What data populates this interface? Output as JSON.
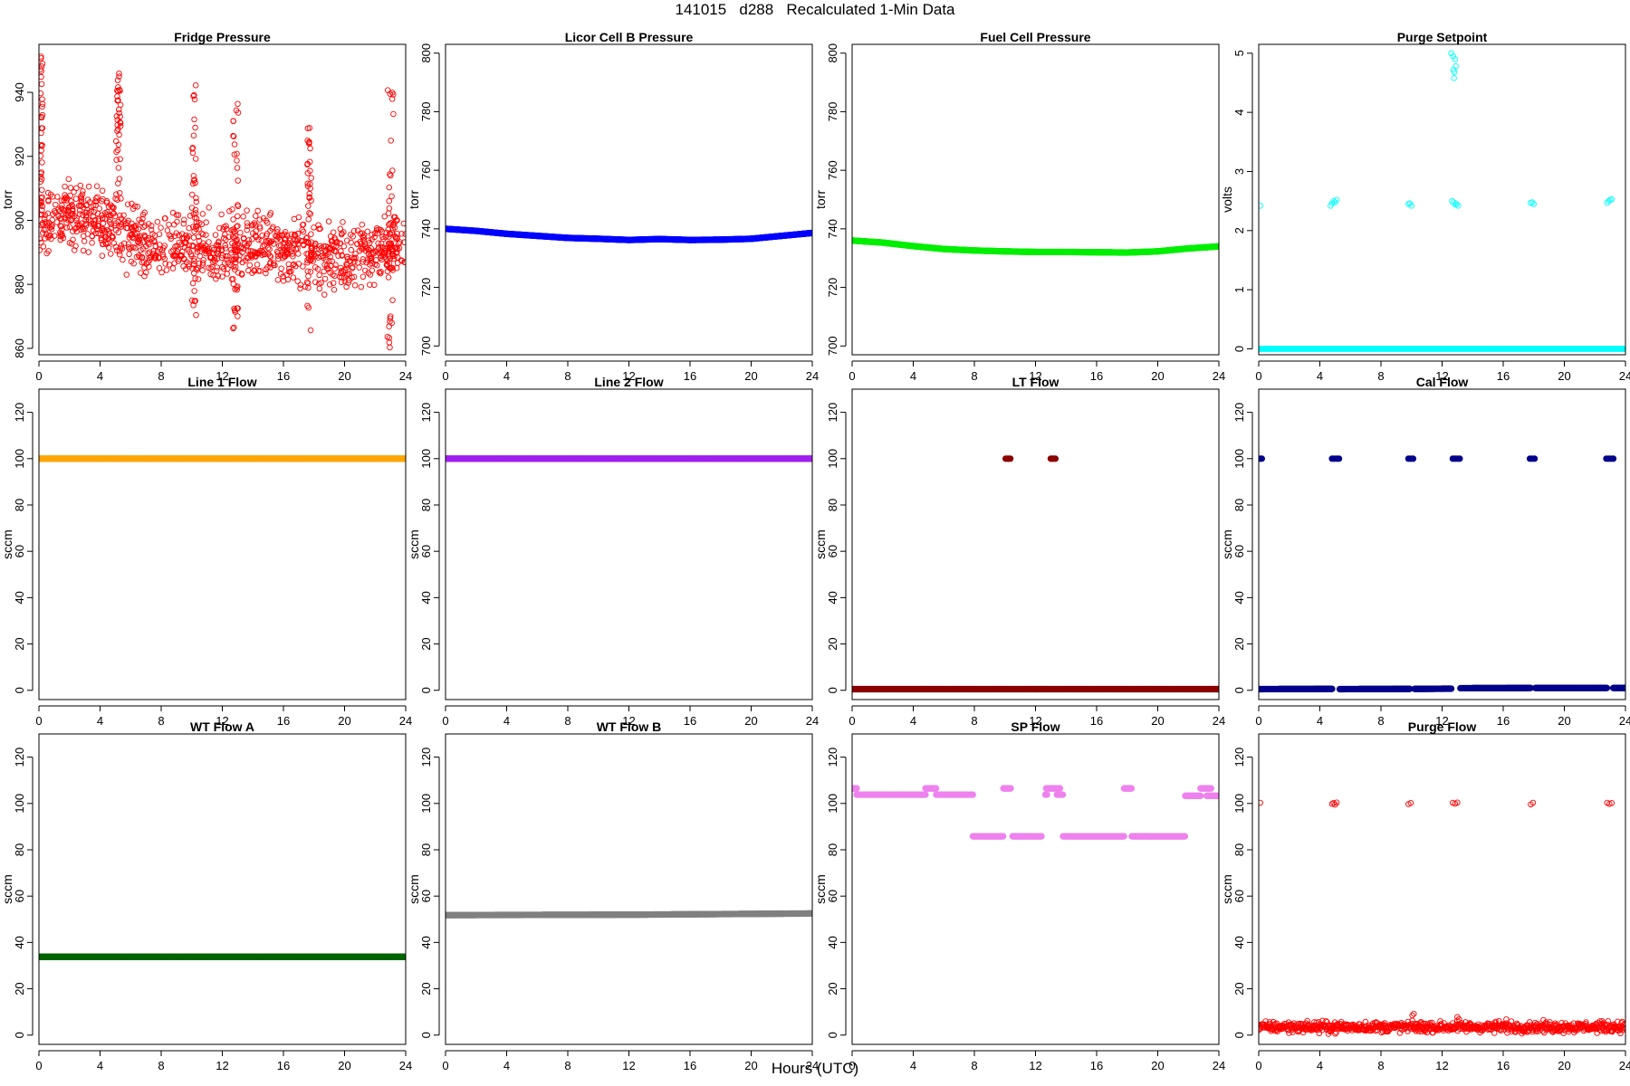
{
  "title": "141015   d288   Recalculated 1-Min Data",
  "xlabel": "Hours (UTC)",
  "chart_data": [
    {
      "type": "scatter",
      "title": "Fridge Pressure",
      "ylabel": "torr",
      "color": "#ff0000",
      "marker": "open-circle",
      "xlim": [
        0,
        24
      ],
      "ylim": [
        858,
        955
      ],
      "xticks": [
        0,
        4,
        8,
        12,
        16,
        20,
        24
      ],
      "yticks": [
        860,
        880,
        900,
        920,
        940
      ],
      "baseline": [
        [
          0,
          899
        ],
        [
          2,
          902
        ],
        [
          4,
          900
        ],
        [
          6,
          894
        ],
        [
          8,
          891
        ],
        [
          10,
          893
        ],
        [
          12,
          890
        ],
        [
          14,
          892
        ],
        [
          16,
          891
        ],
        [
          18,
          889
        ],
        [
          20,
          888
        ],
        [
          22,
          891
        ],
        [
          24,
          892
        ]
      ],
      "spread": 7,
      "bursts": [
        [
          0.1,
          0.25,
          900,
          952
        ],
        [
          5.05,
          5.35,
          905,
          948
        ],
        [
          10.0,
          10.3,
          870,
          943
        ],
        [
          12.7,
          13.05,
          866,
          941
        ],
        [
          17.55,
          17.85,
          864,
          929
        ],
        [
          22.8,
          23.2,
          860,
          943
        ]
      ]
    },
    {
      "type": "scatter",
      "title": "Licor Cell B Pressure",
      "ylabel": "torr",
      "color": "#0000ff",
      "marker": "filled-dense",
      "xlim": [
        0,
        24
      ],
      "ylim": [
        697,
        803
      ],
      "xticks": [
        0,
        4,
        8,
        12,
        16,
        20,
        24
      ],
      "yticks": [
        700,
        720,
        740,
        760,
        780,
        800
      ],
      "segments": [
        {
          "x": [
            0,
            2,
            4,
            6,
            8,
            10,
            12,
            14,
            16,
            18,
            20,
            22,
            24
          ],
          "y": [
            740,
            739.3,
            738.3,
            737.6,
            736.9,
            736.6,
            736.2,
            736.5,
            736.2,
            736.3,
            736.6,
            737.6,
            738.6
          ]
        }
      ]
    },
    {
      "type": "scatter",
      "title": "Fuel Cell Pressure",
      "ylabel": "torr",
      "color": "#00ee00",
      "marker": "filled-dense",
      "xlim": [
        0,
        24
      ],
      "ylim": [
        697,
        803
      ],
      "xticks": [
        0,
        4,
        8,
        12,
        16,
        20,
        24
      ],
      "yticks": [
        700,
        720,
        740,
        760,
        780,
        800
      ],
      "segments": [
        {
          "x": [
            0,
            2,
            4,
            6,
            8,
            10,
            12,
            14,
            16,
            18,
            20,
            22,
            24
          ],
          "y": [
            736,
            735.3,
            734.1,
            733.1,
            732.6,
            732.3,
            732.1,
            732.1,
            732,
            731.9,
            732.3,
            733.3,
            734
          ]
        }
      ]
    },
    {
      "type": "scatter",
      "title": "Purge Setpoint",
      "ylabel": "volts",
      "color": "#00ffff",
      "marker": "open-circle",
      "xlim": [
        0,
        24
      ],
      "ylim": [
        -0.1,
        5.15
      ],
      "xticks": [
        0,
        4,
        8,
        12,
        16,
        20,
        24
      ],
      "yticks": [
        0,
        1,
        2,
        3,
        4,
        5
      ],
      "segments": [
        {
          "x": [
            0,
            24
          ],
          "y": [
            0,
            0
          ]
        }
      ],
      "points": [
        [
          0.1,
          2.42
        ],
        [
          4.7,
          2.42
        ],
        [
          4.8,
          2.46
        ],
        [
          4.9,
          2.5
        ],
        [
          5.0,
          2.48
        ],
        [
          5.1,
          2.52
        ],
        [
          9.8,
          2.45
        ],
        [
          9.9,
          2.46
        ],
        [
          10.0,
          2.42
        ],
        [
          12.65,
          2.5
        ],
        [
          12.75,
          2.48
        ],
        [
          12.85,
          2.44
        ],
        [
          12.95,
          2.45
        ],
        [
          13.05,
          2.42
        ],
        [
          17.8,
          2.47
        ],
        [
          17.9,
          2.48
        ],
        [
          18.0,
          2.45
        ],
        [
          22.8,
          2.47
        ],
        [
          22.9,
          2.5
        ],
        [
          23.0,
          2.52
        ],
        [
          23.1,
          2.53
        ],
        [
          12.6,
          5.0
        ],
        [
          12.72,
          4.95
        ],
        [
          12.85,
          4.9
        ],
        [
          12.75,
          4.72
        ],
        [
          12.9,
          4.78
        ],
        [
          12.8,
          4.68
        ],
        [
          12.78,
          4.58
        ]
      ]
    },
    {
      "type": "scatter",
      "title": "Line 1 Flow",
      "ylabel": "sccm",
      "color": "#ffa500",
      "marker": "filled-dense",
      "xlim": [
        0,
        24
      ],
      "ylim": [
        -4,
        130
      ],
      "xticks": [
        0,
        4,
        8,
        12,
        16,
        20,
        24
      ],
      "yticks": [
        0,
        20,
        40,
        60,
        80,
        100,
        120
      ],
      "segments": [
        {
          "x": [
            0,
            24
          ],
          "y": [
            100,
            100
          ]
        }
      ]
    },
    {
      "type": "scatter",
      "title": "Line 2 Flow",
      "ylabel": "sccm",
      "color": "#a020f0",
      "marker": "filled-dense",
      "xlim": [
        0,
        24
      ],
      "ylim": [
        -4,
        130
      ],
      "xticks": [
        0,
        4,
        8,
        12,
        16,
        20,
        24
      ],
      "yticks": [
        0,
        20,
        40,
        60,
        80,
        100,
        120
      ],
      "segments": [
        {
          "x": [
            0,
            24
          ],
          "y": [
            100,
            100
          ]
        }
      ]
    },
    {
      "type": "scatter",
      "title": "LT Flow",
      "ylabel": "sccm",
      "color": "#8b0000",
      "marker": "filled-dense",
      "xlim": [
        0,
        24
      ],
      "ylim": [
        -4,
        130
      ],
      "xticks": [
        0,
        4,
        8,
        12,
        16,
        20,
        24
      ],
      "yticks": [
        0,
        20,
        40,
        60,
        80,
        100,
        120
      ],
      "segments": [
        {
          "x": [
            0,
            24
          ],
          "y": [
            0.5,
            0.5
          ]
        }
      ],
      "points": [
        [
          10.05,
          100
        ],
        [
          10.15,
          100
        ],
        [
          10.25,
          100
        ],
        [
          10.35,
          100
        ],
        [
          13.0,
          100
        ],
        [
          13.1,
          100
        ],
        [
          13.2,
          100
        ],
        [
          13.3,
          100
        ]
      ]
    },
    {
      "type": "scatter",
      "title": "Cal Flow",
      "ylabel": "sccm",
      "color": "#00008b",
      "marker": "filled-dense",
      "xlim": [
        0,
        24
      ],
      "ylim": [
        -4,
        130
      ],
      "xticks": [
        0,
        4,
        8,
        12,
        16,
        20,
        24
      ],
      "yticks": [
        0,
        20,
        40,
        60,
        80,
        100,
        120
      ],
      "segments": [
        {
          "x": [
            0,
            4.8
          ],
          "y": [
            0.5,
            0.6
          ]
        },
        {
          "x": [
            5.3,
            9.9
          ],
          "y": [
            0.5,
            0.6
          ]
        },
        {
          "x": [
            10.2,
            12.6
          ],
          "y": [
            0.6,
            0.7
          ]
        },
        {
          "x": [
            13.2,
            17.8
          ],
          "y": [
            0.9,
            1.0
          ]
        },
        {
          "x": [
            18.1,
            22.8
          ],
          "y": [
            1.0,
            1.0
          ]
        },
        {
          "x": [
            23.2,
            24
          ],
          "y": [
            1.0,
            1.0
          ]
        }
      ],
      "points": [
        [
          0.1,
          100
        ],
        [
          0.2,
          100
        ],
        [
          4.8,
          100
        ],
        [
          4.95,
          100
        ],
        [
          5.1,
          100
        ],
        [
          5.25,
          100
        ],
        [
          9.8,
          100
        ],
        [
          9.95,
          100
        ],
        [
          10.1,
          100
        ],
        [
          12.7,
          100
        ],
        [
          12.85,
          100
        ],
        [
          13.0,
          100
        ],
        [
          13.15,
          100
        ],
        [
          17.75,
          100
        ],
        [
          17.9,
          100
        ],
        [
          18.05,
          100
        ],
        [
          22.75,
          100
        ],
        [
          22.9,
          100
        ],
        [
          23.05,
          100
        ],
        [
          23.2,
          100
        ]
      ]
    },
    {
      "type": "scatter",
      "title": "WT Flow A",
      "ylabel": "sccm",
      "color": "#006400",
      "marker": "filled-dense",
      "xlim": [
        0,
        24
      ],
      "ylim": [
        -4,
        130
      ],
      "xticks": [
        0,
        4,
        8,
        12,
        16,
        20,
        24
      ],
      "yticks": [
        0,
        20,
        40,
        60,
        80,
        100,
        120
      ],
      "segments": [
        {
          "x": [
            0,
            24
          ],
          "y": [
            33.8,
            33.8
          ]
        }
      ]
    },
    {
      "type": "scatter",
      "title": "WT Flow B",
      "ylabel": "sccm",
      "color": "#808080",
      "marker": "filled-dense",
      "xlim": [
        0,
        24
      ],
      "ylim": [
        -4,
        130
      ],
      "xticks": [
        0,
        4,
        8,
        12,
        16,
        20,
        24
      ],
      "yticks": [
        0,
        20,
        40,
        60,
        80,
        100,
        120
      ],
      "segments": [
        {
          "x": [
            0,
            12.6
          ],
          "y": [
            51.8,
            52.0
          ]
        },
        {
          "x": [
            12.6,
            24
          ],
          "y": [
            52.0,
            52.5
          ]
        }
      ]
    },
    {
      "type": "scatter",
      "title": "SP Flow",
      "ylabel": "sccm",
      "color": "#ee82ee",
      "marker": "filled-dense",
      "xlim": [
        0,
        24
      ],
      "ylim": [
        -4,
        130
      ],
      "xticks": [
        0,
        4,
        8,
        12,
        16,
        20,
        24
      ],
      "yticks": [
        0,
        20,
        40,
        60,
        80,
        100,
        120
      ],
      "segments": [
        {
          "x": [
            0,
            0.3
          ],
          "y": [
            106.5,
            106.5
          ]
        },
        {
          "x": [
            0.3,
            4.8
          ],
          "y": [
            103.8,
            103.8
          ]
        },
        {
          "x": [
            4.8,
            5.5
          ],
          "y": [
            106.5,
            106.5
          ]
        },
        {
          "x": [
            5.5,
            7.9
          ],
          "y": [
            103.8,
            103.8
          ]
        },
        {
          "x": [
            7.9,
            9.9
          ],
          "y": [
            85.8,
            85.8
          ]
        },
        {
          "x": [
            9.9,
            10.4
          ],
          "y": [
            106.5,
            106.5
          ]
        },
        {
          "x": [
            10.5,
            12.4
          ],
          "y": [
            85.8,
            85.8
          ]
        },
        {
          "x": [
            12.7,
            13.6
          ],
          "y": [
            106.5,
            106.5
          ]
        },
        {
          "x": [
            13.4,
            13.8
          ],
          "y": [
            103.8,
            103.8
          ]
        },
        {
          "x": [
            13.8,
            17.8
          ],
          "y": [
            85.8,
            85.8
          ]
        },
        {
          "x": [
            17.8,
            18.3
          ],
          "y": [
            106.5,
            106.5
          ]
        },
        {
          "x": [
            18.3,
            21.8
          ],
          "y": [
            85.8,
            85.8
          ]
        },
        {
          "x": [
            21.8,
            22.8
          ],
          "y": [
            103.3,
            103.3
          ]
        },
        {
          "x": [
            22.8,
            23.5
          ],
          "y": [
            106.5,
            106.5
          ]
        },
        {
          "x": [
            23.2,
            24
          ],
          "y": [
            103.3,
            103.3
          ]
        }
      ],
      "points": [
        [
          12.65,
          103.8
        ],
        [
          12.75,
          103.8
        ]
      ]
    },
    {
      "type": "scatter",
      "title": "Purge Flow",
      "ylabel": "sccm",
      "color": "#ff0000",
      "marker": "open-circle",
      "xlim": [
        0,
        24
      ],
      "ylim": [
        -4,
        130
      ],
      "xticks": [
        0,
        4,
        8,
        12,
        16,
        20,
        24
      ],
      "yticks": [
        0,
        20,
        40,
        60,
        80,
        100,
        120
      ],
      "segments": [
        {
          "x": [
            0,
            24
          ],
          "y": [
            3.5,
            3.5
          ]
        }
      ],
      "spread": 1.6,
      "points": [
        [
          0.1,
          100.3
        ],
        [
          4.8,
          99.8
        ],
        [
          4.9,
          100.2
        ],
        [
          5.0,
          99.5
        ],
        [
          5.1,
          100.4
        ],
        [
          9.8,
          99.7
        ],
        [
          9.95,
          100.2
        ],
        [
          12.7,
          100.3
        ],
        [
          12.85,
          99.9
        ],
        [
          13.0,
          100.4
        ],
        [
          17.8,
          99.6
        ],
        [
          17.95,
          100.3
        ],
        [
          22.8,
          100.3
        ],
        [
          22.95,
          99.8
        ],
        [
          23.1,
          100.2
        ],
        [
          10.05,
          8.5
        ],
        [
          10.15,
          9.2
        ],
        [
          13.0,
          7.8
        ],
        [
          13.1,
          6.9
        ],
        [
          16.2,
          6.8
        ]
      ]
    }
  ]
}
